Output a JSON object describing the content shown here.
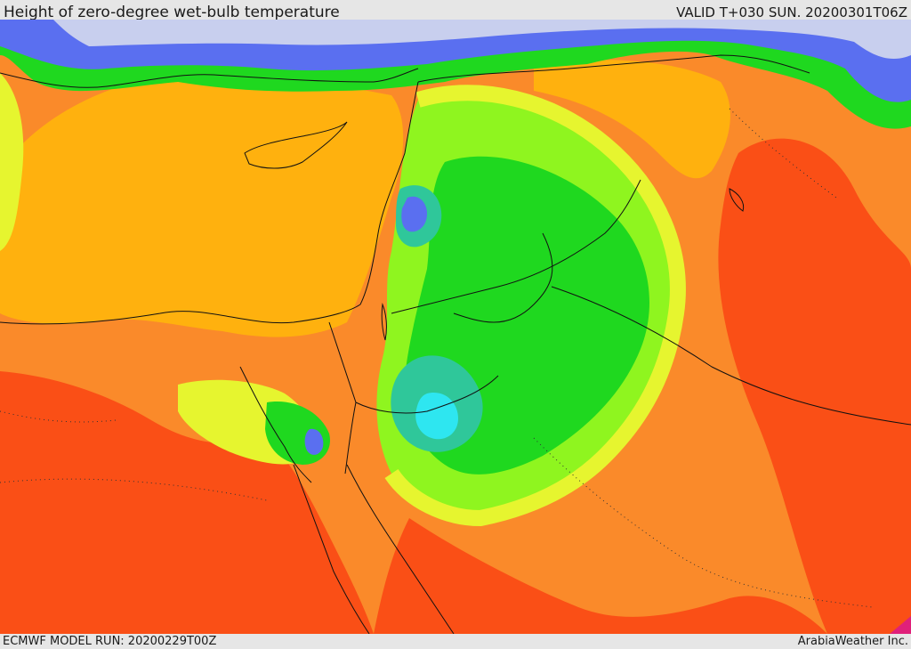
{
  "header": {
    "title": "Height of zero-degree wet-bulb temperature",
    "valid": "VALID T+030 SUN. 20200301T06Z"
  },
  "footer": {
    "model_run": "ECMWF MODEL RUN: 20200229T00Z",
    "credit": "ArabiaWeather Inc."
  },
  "palette": {
    "lavender": "#c8cfee",
    "blue": "#5a6ff0",
    "cyan": "#2ee6f0",
    "teal": "#2fc79a",
    "green": "#1fd81f",
    "lightgreen": "#8ff51f",
    "yellowgreen": "#e6f52f",
    "amber": "#ffb10e",
    "orange": "#fa8a2a",
    "redorange": "#fa4f16",
    "magenta": "#e0207a"
  }
}
